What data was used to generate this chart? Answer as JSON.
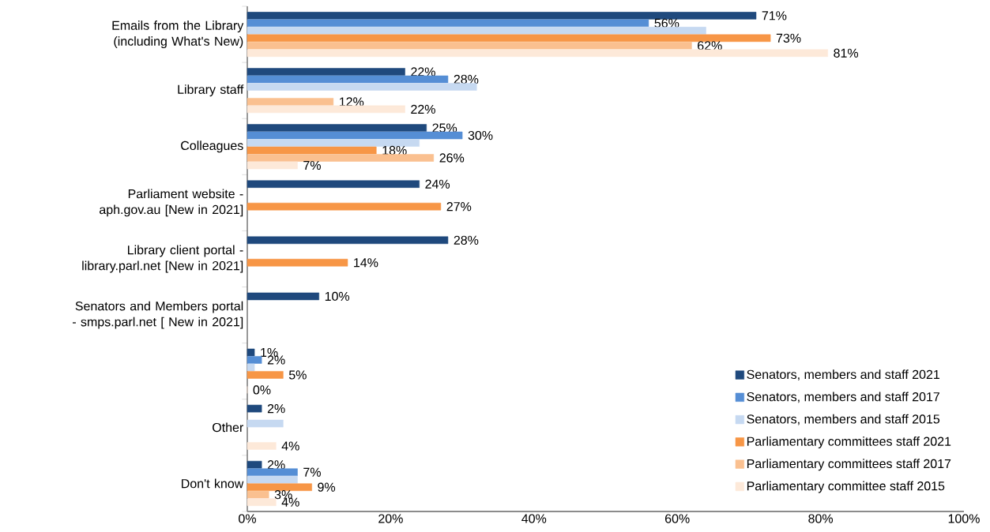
{
  "chart_data": {
    "type": "bar",
    "orientation": "horizontal",
    "categories": [
      "Emails from the Library (including What's New)",
      "Library staff",
      "Colleagues",
      "Parliament website - aph.gov.au [New in 2021]",
      "Library client portal - library.parl.net [New in 2021]",
      "Senators and Members portal - smps.parl.net [ New in 2021]",
      null,
      "Other",
      "Don't know"
    ],
    "series": [
      {
        "name": "Senators, members and staff 2021",
        "color": "#1f497d",
        "values": [
          71,
          22,
          25,
          24,
          28,
          10,
          1,
          2,
          2
        ],
        "value_labels": [
          "71%",
          "22%",
          "25%",
          "24%",
          "28%",
          "10%",
          "1%",
          "2%",
          "2%"
        ]
      },
      {
        "name": "Senators, members and staff 2017",
        "color": "#558ed5",
        "values": [
          56,
          28,
          30,
          null,
          null,
          null,
          2,
          null,
          7
        ],
        "value_labels": [
          "56%",
          "28%",
          "30%",
          null,
          null,
          null,
          "2%",
          null,
          "7%"
        ]
      },
      {
        "name": "Senators, members and staff 2015",
        "color": "#c6d9f1",
        "values": [
          64,
          32,
          24,
          null,
          null,
          null,
          1,
          5,
          7
        ]
      },
      {
        "name": "Parliamentary committees staff 2021",
        "color": "#f79646",
        "values": [
          73,
          null,
          18,
          27,
          14,
          null,
          5,
          null,
          9
        ],
        "value_labels": [
          "73%",
          null,
          "18%",
          "27%",
          "14%",
          null,
          "5%",
          null,
          "9%"
        ]
      },
      {
        "name": "Parliamentary committees staff 2017",
        "color": "#fac090",
        "values": [
          62,
          12,
          26,
          null,
          null,
          null,
          null,
          null,
          3
        ],
        "value_labels": [
          "62%",
          "12%",
          "26%",
          null,
          null,
          null,
          null,
          null,
          "3%"
        ]
      },
      {
        "name": "Parliamentary committee staff 2015",
        "color": "#fde9d9",
        "values": [
          81,
          22,
          7,
          null,
          null,
          null,
          0,
          4,
          4
        ],
        "value_labels": [
          "81%",
          "22%",
          "7%",
          null,
          null,
          null,
          "0%",
          "4%",
          "4%"
        ]
      }
    ],
    "xlim": [
      0,
      100
    ],
    "xticks": [
      {
        "value": 0,
        "label": "0%"
      },
      {
        "value": 20,
        "label": "20%"
      },
      {
        "value": 40,
        "label": "40%"
      },
      {
        "value": 60,
        "label": "60%"
      },
      {
        "value": 80,
        "label": "80%"
      },
      {
        "value": 100,
        "label": "100%"
      }
    ],
    "legend": "bottom right"
  }
}
